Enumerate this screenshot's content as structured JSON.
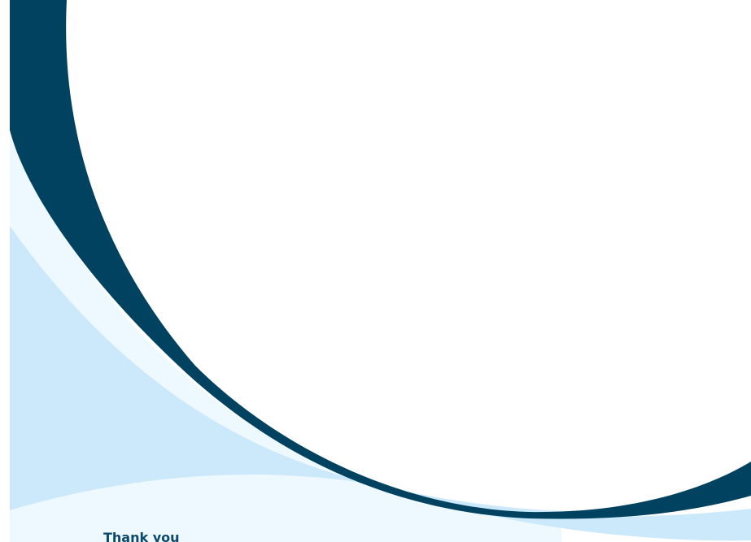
{
  "slide": {
    "closing_text": "Thank you"
  },
  "colors": {
    "background": "#ffffff",
    "navy_band": "#00425f",
    "light_blue": "#cbe9fa",
    "pale_blue": "#eef8ff",
    "text": "#0b4a6c"
  }
}
